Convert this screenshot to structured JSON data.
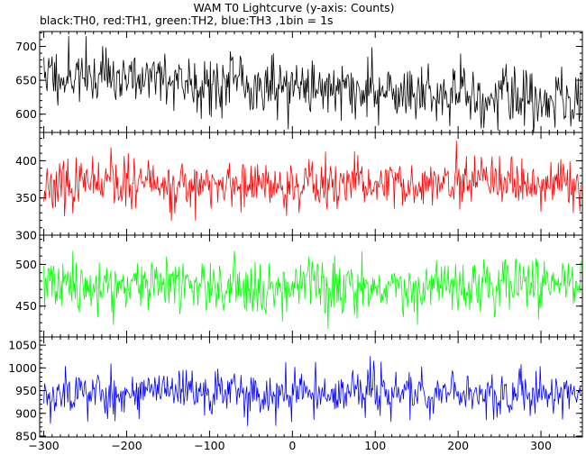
{
  "chart_data": {
    "type": "line",
    "title": "WAM T0 Lightcurve (y-axis: Counts)",
    "subtitle": "black:TH0, red:TH1, green:TH2, blue:TH3 ,1bin = 1s",
    "xlabel": "",
    "x_range": [
      -305,
      350
    ],
    "x_ticks": [
      -300,
      -200,
      -100,
      0,
      100,
      200,
      300
    ],
    "x_ticklabels": [
      "−300",
      "−200",
      "−100",
      "0",
      "100",
      "200",
      "300"
    ],
    "grid": false,
    "panels": [
      {
        "series": "TH0",
        "color": "#000000",
        "ylim": [
          573,
          722
        ],
        "yticks": [
          600,
          650,
          700
        ],
        "ytick_labels": [
          "600",
          "650",
          "700"
        ],
        "mean_start": 660,
        "mean_end": 620,
        "spread": 25,
        "seed": 11
      },
      {
        "series": "TH1",
        "color": "#ff0000",
        "ylim": [
          300,
          438
        ],
        "yticks": [
          300,
          350,
          400
        ],
        "ytick_labels": [
          "300",
          "350",
          "400"
        ],
        "mean_start": 367,
        "mean_end": 367,
        "spread": 19,
        "seed": 23
      },
      {
        "series": "TH2",
        "color": "#00ff00",
        "ylim": [
          413,
          535
        ],
        "yticks": [
          450,
          500
        ],
        "ytick_labels": [
          "450",
          "500"
        ],
        "mean_start": 475,
        "mean_end": 475,
        "spread": 19,
        "seed": 37
      },
      {
        "series": "TH3",
        "color": "#0000ff",
        "ylim": [
          848,
          1068
        ],
        "yticks": [
          850,
          900,
          950,
          1000,
          1050
        ],
        "ytick_labels": [
          "850",
          "900",
          "950",
          "1000",
          "1050"
        ],
        "mean_start": 945,
        "mean_end": 945,
        "spread": 30,
        "seed": 53
      }
    ]
  }
}
